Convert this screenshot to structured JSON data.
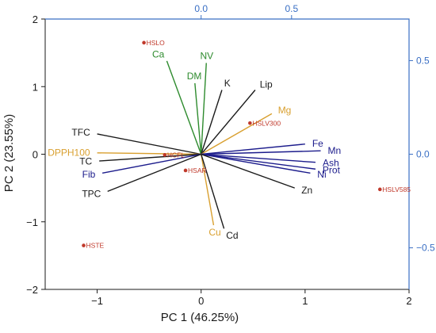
{
  "chart_data": {
    "type": "scatter",
    "subtype": "pca-biplot",
    "title": "",
    "xlabel": "PC 1 (46.25%)",
    "ylabel": "PC 2 (23.55%)",
    "xlim": [
      -1.5,
      2
    ],
    "ylim": [
      -2,
      2
    ],
    "x_ticks": [
      -1,
      0,
      1,
      2
    ],
    "y_ticks": [
      -2,
      -1,
      0,
      1,
      2
    ],
    "secondary_axes": {
      "x_ticks": [
        0.0,
        0.5
      ],
      "y_ticks": [
        0.5,
        0.0,
        -0.5
      ],
      "color": "#3a6fc4"
    },
    "grid": false,
    "colors": {
      "black": "#1a1a1a",
      "green": "#2e8b2e",
      "gold": "#d9a030",
      "navy": "#1c1c8c",
      "samples": "#c0392b"
    },
    "samples": [
      {
        "label": "HSLO",
        "x": -0.55,
        "y": 1.65
      },
      {
        "label": "HSLV300",
        "x": 0.47,
        "y": 0.46
      },
      {
        "label": "HCFL",
        "x": -0.35,
        "y": -0.01
      },
      {
        "label": "HSAR",
        "x": -0.15,
        "y": -0.24
      },
      {
        "label": "HSLV585",
        "x": 1.72,
        "y": -0.52
      },
      {
        "label": "HSTE",
        "x": -1.13,
        "y": -1.35
      }
    ],
    "loadings": [
      {
        "label": "Ca",
        "x": -0.33,
        "y": 1.38,
        "group": "green"
      },
      {
        "label": "NV",
        "x": 0.05,
        "y": 1.35,
        "group": "green"
      },
      {
        "label": "DM",
        "x": -0.06,
        "y": 1.05,
        "group": "green"
      },
      {
        "label": "K",
        "x": 0.2,
        "y": 0.95,
        "group": "black"
      },
      {
        "label": "Lip",
        "x": 0.52,
        "y": 0.95,
        "group": "black"
      },
      {
        "label": "Mg",
        "x": 0.68,
        "y": 0.6,
        "group": "gold"
      },
      {
        "label": "Fe",
        "x": 1.0,
        "y": 0.15,
        "group": "navy"
      },
      {
        "label": "Mn",
        "x": 1.15,
        "y": 0.05,
        "group": "navy"
      },
      {
        "label": "Ash",
        "x": 1.1,
        "y": -0.12,
        "group": "navy"
      },
      {
        "label": "Prot",
        "x": 1.1,
        "y": -0.22,
        "group": "navy"
      },
      {
        "label": "Ni",
        "x": 1.05,
        "y": -0.28,
        "group": "navy"
      },
      {
        "label": "Zn",
        "x": 0.9,
        "y": -0.5,
        "group": "black"
      },
      {
        "label": "TFC",
        "x": -1.0,
        "y": 0.3,
        "group": "black"
      },
      {
        "label": "DPPH100",
        "x": -1.0,
        "y": 0.02,
        "group": "gold"
      },
      {
        "label": "TC",
        "x": -0.98,
        "y": -0.1,
        "group": "black"
      },
      {
        "label": "Fib",
        "x": -0.95,
        "y": -0.28,
        "group": "navy"
      },
      {
        "label": "TPC",
        "x": -0.9,
        "y": -0.55,
        "group": "black"
      },
      {
        "label": "Cu",
        "x": 0.12,
        "y": -1.05,
        "group": "gold"
      },
      {
        "label": "Cd",
        "x": 0.22,
        "y": -1.1,
        "group": "black"
      }
    ]
  }
}
